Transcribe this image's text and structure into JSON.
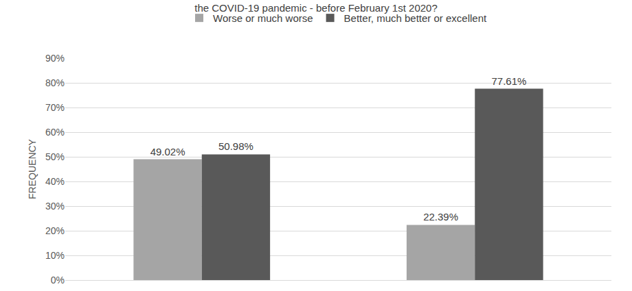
{
  "chart_data": {
    "type": "bar",
    "title": "the COVID-19 pandemic - before February 1st 2020?",
    "y_label": "FREQUENCY",
    "categories": [
      null,
      null
    ],
    "series": [
      {
        "name": "Worse or much worse",
        "color": "#a5a5a5",
        "values": [
          49.02,
          22.39
        ],
        "value_labels": [
          "49.02%",
          "22.39%"
        ]
      },
      {
        "name": "Better, much better or excellent",
        "color": "#595959",
        "values": [
          50.98,
          77.61
        ],
        "value_labels": [
          "50.98%",
          "77.61%"
        ]
      }
    ],
    "ylim": [
      0,
      90
    ],
    "yticks": [
      {
        "value": 0,
        "label": "0%"
      },
      {
        "value": 10,
        "label": "10%"
      },
      {
        "value": 20,
        "label": "20%"
      },
      {
        "value": 30,
        "label": "30%"
      },
      {
        "value": 40,
        "label": "40%"
      },
      {
        "value": 50,
        "label": "50%"
      },
      {
        "value": 60,
        "label": "60%"
      },
      {
        "value": 70,
        "label": "70%"
      },
      {
        "value": 80,
        "label": "80%"
      },
      {
        "value": 90,
        "label": "90%"
      }
    ],
    "grid": true,
    "legend": "top",
    "data_labels": true
  }
}
